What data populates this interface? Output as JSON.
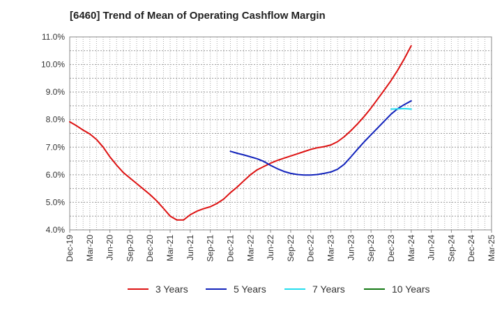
{
  "chart_data": {
    "type": "line",
    "title": "[6460]  Trend of Mean of Operating Cashflow Margin",
    "xlabel": "",
    "ylabel": "",
    "ylim": [
      4.0,
      11.0
    ],
    "y_ticks": [
      "4.0%",
      "5.0%",
      "6.0%",
      "7.0%",
      "8.0%",
      "9.0%",
      "10.0%",
      "11.0%"
    ],
    "categories": [
      "Dec-19",
      "Mar-20",
      "Jun-20",
      "Sep-20",
      "Dec-20",
      "Mar-21",
      "Jun-21",
      "Sep-21",
      "Dec-21",
      "Mar-22",
      "Jun-22",
      "Sep-22",
      "Dec-22",
      "Mar-23",
      "Jun-23",
      "Sep-23",
      "Dec-23",
      "Mar-24",
      "Jun-24",
      "Sep-24",
      "Dec-24",
      "Mar-25"
    ],
    "grid": true,
    "legend_position": "bottom",
    "series": [
      {
        "name": "3 Years",
        "color": "#dd1111",
        "points": [
          [
            "Dec-19",
            7.92
          ],
          [
            "Jan-20",
            7.78
          ],
          [
            "Feb-20",
            7.62
          ],
          [
            "Mar-20",
            7.48
          ],
          [
            "Apr-20",
            7.28
          ],
          [
            "May-20",
            7.0
          ],
          [
            "Jun-20",
            6.65
          ],
          [
            "Jul-20",
            6.35
          ],
          [
            "Aug-20",
            6.08
          ],
          [
            "Sep-20",
            5.88
          ],
          [
            "Oct-20",
            5.68
          ],
          [
            "Nov-20",
            5.48
          ],
          [
            "Dec-20",
            5.28
          ],
          [
            "Jan-21",
            5.05
          ],
          [
            "Feb-21",
            4.78
          ],
          [
            "Mar-21",
            4.5
          ],
          [
            "Apr-21",
            4.36
          ],
          [
            "May-21",
            4.36
          ],
          [
            "Jun-21",
            4.55
          ],
          [
            "Jul-21",
            4.68
          ],
          [
            "Aug-21",
            4.77
          ],
          [
            "Sep-21",
            4.84
          ],
          [
            "Oct-21",
            4.96
          ],
          [
            "Nov-21",
            5.12
          ],
          [
            "Dec-21",
            5.35
          ],
          [
            "Jan-22",
            5.55
          ],
          [
            "Feb-22",
            5.78
          ],
          [
            "Mar-22",
            6.0
          ],
          [
            "Apr-22",
            6.18
          ],
          [
            "May-22",
            6.3
          ],
          [
            "Jun-22",
            6.42
          ],
          [
            "Jul-22",
            6.52
          ],
          [
            "Aug-22",
            6.6
          ],
          [
            "Sep-22",
            6.68
          ],
          [
            "Oct-22",
            6.76
          ],
          [
            "Nov-22",
            6.84
          ],
          [
            "Dec-22",
            6.92
          ],
          [
            "Jan-23",
            6.98
          ],
          [
            "Feb-23",
            7.02
          ],
          [
            "Mar-23",
            7.08
          ],
          [
            "Apr-23",
            7.2
          ],
          [
            "May-23",
            7.38
          ],
          [
            "Jun-23",
            7.6
          ],
          [
            "Jul-23",
            7.85
          ],
          [
            "Aug-23",
            8.12
          ],
          [
            "Sep-23",
            8.42
          ],
          [
            "Oct-23",
            8.75
          ],
          [
            "Nov-23",
            9.08
          ],
          [
            "Dec-23",
            9.42
          ],
          [
            "Jan-24",
            9.8
          ],
          [
            "Feb-24",
            10.22
          ],
          [
            "Mar-24",
            10.68
          ]
        ]
      },
      {
        "name": "5 Years",
        "color": "#1122bb",
        "points": [
          [
            "Dec-21",
            6.85
          ],
          [
            "Jan-22",
            6.78
          ],
          [
            "Feb-22",
            6.72
          ],
          [
            "Mar-22",
            6.65
          ],
          [
            "Apr-22",
            6.58
          ],
          [
            "May-22",
            6.48
          ],
          [
            "Jun-22",
            6.34
          ],
          [
            "Jul-22",
            6.22
          ],
          [
            "Aug-22",
            6.12
          ],
          [
            "Sep-22",
            6.05
          ],
          [
            "Oct-22",
            6.01
          ],
          [
            "Nov-22",
            5.99
          ],
          [
            "Dec-22",
            5.99
          ],
          [
            "Jan-23",
            6.01
          ],
          [
            "Feb-23",
            6.05
          ],
          [
            "Mar-23",
            6.1
          ],
          [
            "Apr-23",
            6.2
          ],
          [
            "May-23",
            6.38
          ],
          [
            "Jun-23",
            6.65
          ],
          [
            "Jul-23",
            6.93
          ],
          [
            "Aug-23",
            7.2
          ],
          [
            "Sep-23",
            7.45
          ],
          [
            "Oct-23",
            7.7
          ],
          [
            "Nov-23",
            7.95
          ],
          [
            "Dec-23",
            8.2
          ],
          [
            "Jan-24",
            8.4
          ],
          [
            "Feb-24",
            8.55
          ],
          [
            "Mar-24",
            8.68
          ]
        ]
      },
      {
        "name": "7 Years",
        "color": "#22ddee",
        "points": [
          [
            "Dec-23",
            8.38
          ],
          [
            "Jan-24",
            8.39
          ],
          [
            "Feb-24",
            8.4
          ],
          [
            "Mar-24",
            8.38
          ]
        ]
      },
      {
        "name": "10 Years",
        "color": "#117711",
        "points": []
      }
    ]
  }
}
